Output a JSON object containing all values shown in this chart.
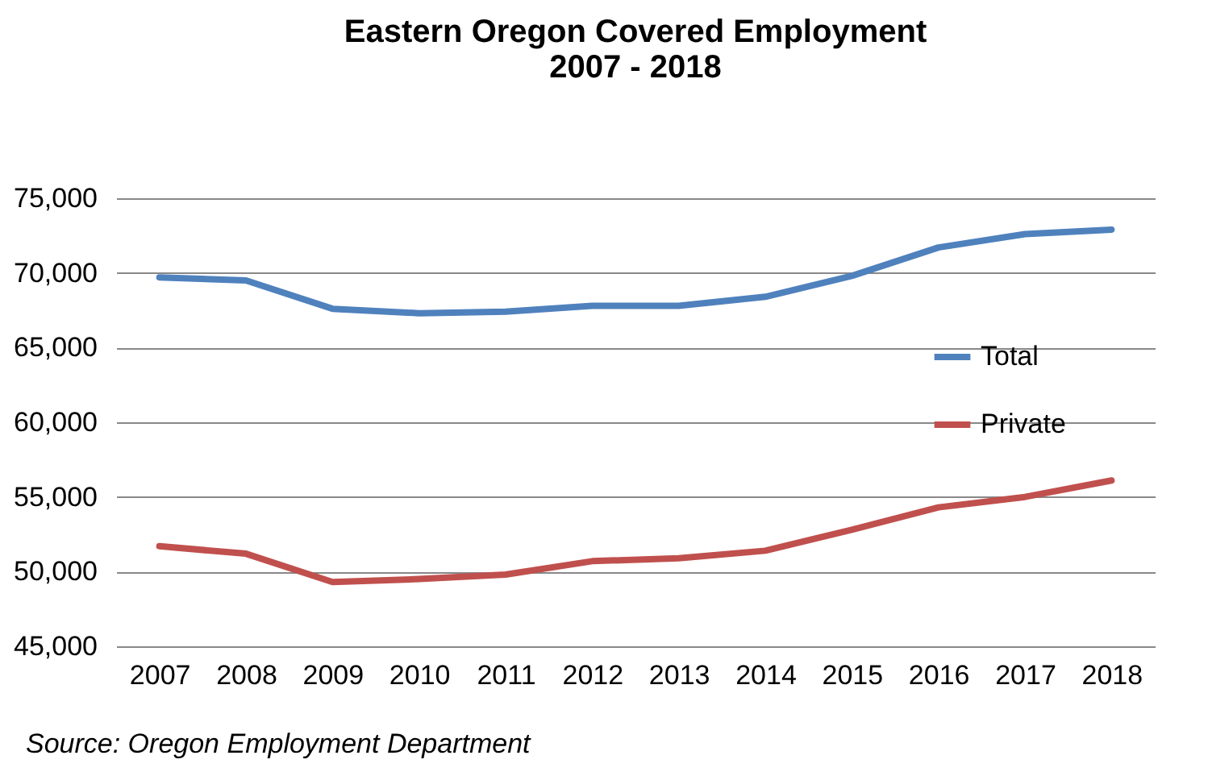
{
  "chart_data": {
    "type": "line",
    "title": "Eastern Oregon Covered Employment\n2007 - 2018",
    "categories": [
      "2007",
      "2008",
      "2009",
      "2010",
      "2011",
      "2012",
      "2013",
      "2014",
      "2015",
      "2016",
      "2017",
      "2018"
    ],
    "series": [
      {
        "name": "Total",
        "color": "#4f81bd",
        "values": [
          69700,
          69500,
          67600,
          67300,
          67400,
          67800,
          67800,
          68400,
          69800,
          71700,
          72600,
          72900
        ]
      },
      {
        "name": "Private",
        "color": "#c0504d",
        "values": [
          51700,
          51200,
          49300,
          49500,
          49800,
          50700,
          50900,
          51400,
          52800,
          54300,
          55000,
          56100
        ]
      }
    ],
    "ylim": [
      45000,
      75000
    ],
    "yticks": [
      {
        "value": 45000,
        "label": "45,000"
      },
      {
        "value": 50000,
        "label": "50,000"
      },
      {
        "value": 55000,
        "label": "55,000"
      },
      {
        "value": 60000,
        "label": "60,000"
      },
      {
        "value": 65000,
        "label": "65,000"
      },
      {
        "value": 70000,
        "label": "70,000"
      },
      {
        "value": 75000,
        "label": "75,000"
      }
    ],
    "grid": "y",
    "legend": "right",
    "marker": "none",
    "line_style": "solid",
    "annotations": [
      "Source:  Oregon  Employment  Department"
    ]
  }
}
